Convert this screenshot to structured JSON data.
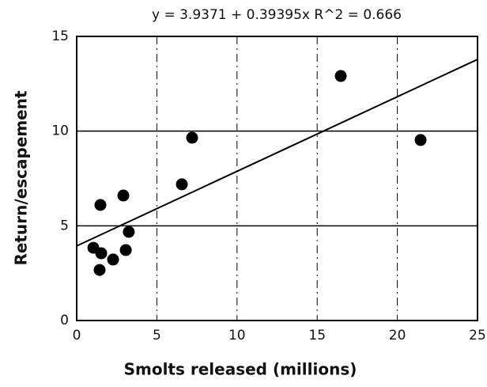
{
  "chart_data": {
    "type": "scatter",
    "title": "y = 3.9371 + 0.39395x   R^2 = 0.666",
    "xlabel": "Smolts released (millions)",
    "ylabel": "Return/escapement",
    "x": [
      1.04,
      1.48,
      1.53,
      1.43,
      2.27,
      2.91,
      3.06,
      3.25,
      6.56,
      7.2,
      16.47,
      21.45
    ],
    "values": [
      3.84,
      6.1,
      3.55,
      2.67,
      3.22,
      6.6,
      3.72,
      4.68,
      7.19,
      9.65,
      12.91,
      9.53
    ],
    "color": "#000000",
    "fit_line": {
      "intercept": 3.9371,
      "slope": 0.39395
    },
    "xlim": [
      0,
      25
    ],
    "xticks": [
      0,
      5,
      10,
      15,
      20,
      25
    ],
    "ylim": [
      0,
      15
    ],
    "yticks": [
      0,
      5,
      10,
      15
    ],
    "grid": true
  }
}
